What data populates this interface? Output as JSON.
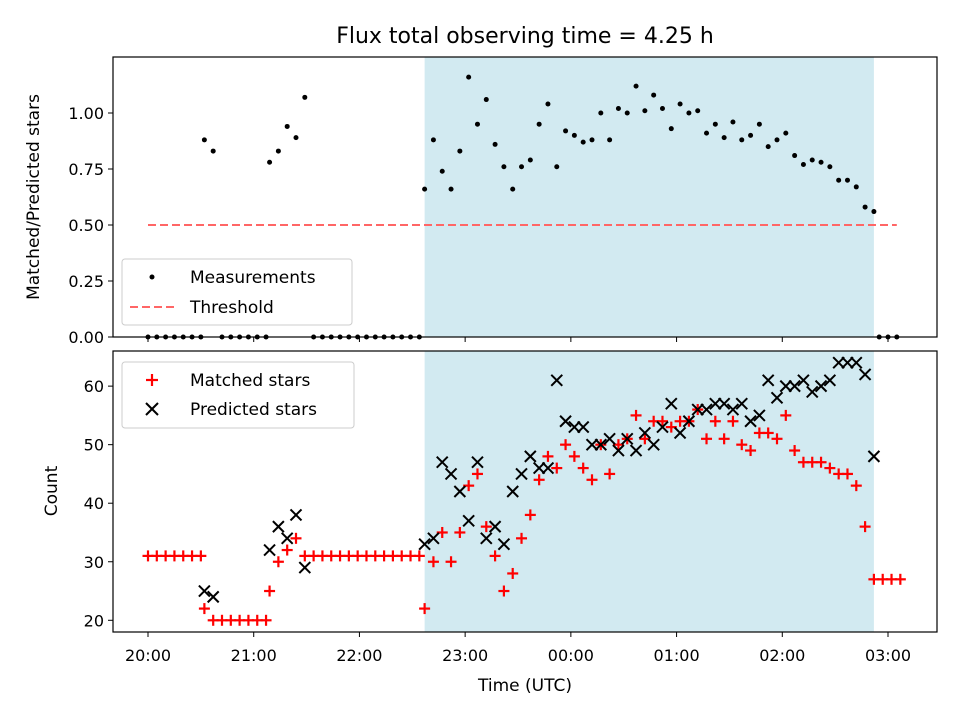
{
  "chart_data": [
    {
      "type": "scatter",
      "title": "Flux total observing time = 4.25 h",
      "xlabel": "",
      "ylabel": "Matched/Predicted stars",
      "ylim": [
        0,
        1.25
      ],
      "yticks": [
        "0.00",
        "0.25",
        "0.50",
        "0.75",
        "1.00"
      ],
      "shaded_region": {
        "from": "22:37",
        "to": "02:52",
        "color": "#add8e6"
      },
      "legend_position": "lower-left",
      "legend": [
        "Measurements",
        "Threshold"
      ],
      "threshold": {
        "name": "Threshold",
        "y": 0.5,
        "x_from": "20:00",
        "x_to": "03:05",
        "color": "#ff6666"
      },
      "series": [
        {
          "name": "Measurements",
          "color": "#000000",
          "points": [
            [
              "20:00",
              0
            ],
            [
              "20:05",
              0
            ],
            [
              "20:10",
              0
            ],
            [
              "20:15",
              0
            ],
            [
              "20:20",
              0
            ],
            [
              "20:25",
              0
            ],
            [
              "20:30",
              0
            ],
            [
              "20:32",
              0.88
            ],
            [
              "20:37",
              0.83
            ],
            [
              "20:42",
              0
            ],
            [
              "20:47",
              0
            ],
            [
              "20:52",
              0
            ],
            [
              "20:57",
              0
            ],
            [
              "21:02",
              0
            ],
            [
              "21:07",
              0
            ],
            [
              "21:09",
              0.78
            ],
            [
              "21:14",
              0.83
            ],
            [
              "21:19",
              0.94
            ],
            [
              "21:24",
              0.89
            ],
            [
              "21:29",
              1.07
            ],
            [
              "21:34",
              0
            ],
            [
              "21:39",
              0
            ],
            [
              "21:44",
              0
            ],
            [
              "21:49",
              0
            ],
            [
              "21:54",
              0
            ],
            [
              "21:59",
              0
            ],
            [
              "22:04",
              0
            ],
            [
              "22:09",
              0
            ],
            [
              "22:14",
              0
            ],
            [
              "22:19",
              0
            ],
            [
              "22:24",
              0
            ],
            [
              "22:29",
              0
            ],
            [
              "22:34",
              0
            ],
            [
              "22:37",
              0.66
            ],
            [
              "22:42",
              0.88
            ],
            [
              "22:47",
              0.74
            ],
            [
              "22:52",
              0.66
            ],
            [
              "22:57",
              0.83
            ],
            [
              "23:02",
              1.16
            ],
            [
              "23:07",
              0.95
            ],
            [
              "23:12",
              1.06
            ],
            [
              "23:17",
              0.86
            ],
            [
              "23:22",
              0.76
            ],
            [
              "23:27",
              0.66
            ],
            [
              "23:32",
              0.76
            ],
            [
              "23:37",
              0.79
            ],
            [
              "23:42",
              0.95
            ],
            [
              "23:47",
              1.04
            ],
            [
              "23:52",
              0.76
            ],
            [
              "23:57",
              0.92
            ],
            [
              "00:02",
              0.9
            ],
            [
              "00:07",
              0.87
            ],
            [
              "00:12",
              0.88
            ],
            [
              "00:17",
              1.0
            ],
            [
              "00:22",
              0.88
            ],
            [
              "00:27",
              1.02
            ],
            [
              "00:32",
              1.0
            ],
            [
              "00:37",
              1.12
            ],
            [
              "00:42",
              1.01
            ],
            [
              "00:47",
              1.08
            ],
            [
              "00:52",
              1.02
            ],
            [
              "00:57",
              0.93
            ],
            [
              "01:02",
              1.04
            ],
            [
              "01:07",
              1.0
            ],
            [
              "01:12",
              1.01
            ],
            [
              "01:17",
              0.91
            ],
            [
              "01:22",
              0.95
            ],
            [
              "01:27",
              0.89
            ],
            [
              "01:32",
              0.96
            ],
            [
              "01:37",
              0.88
            ],
            [
              "01:42",
              0.9
            ],
            [
              "01:47",
              0.95
            ],
            [
              "01:52",
              0.85
            ],
            [
              "01:57",
              0.88
            ],
            [
              "02:02",
              0.91
            ],
            [
              "02:07",
              0.81
            ],
            [
              "02:12",
              0.77
            ],
            [
              "02:17",
              0.79
            ],
            [
              "02:22",
              0.78
            ],
            [
              "02:27",
              0.76
            ],
            [
              "02:32",
              0.7
            ],
            [
              "02:37",
              0.7
            ],
            [
              "02:42",
              0.67
            ],
            [
              "02:47",
              0.58
            ],
            [
              "02:52",
              0.56
            ],
            [
              "02:55",
              0
            ],
            [
              "03:00",
              0
            ],
            [
              "03:05",
              0
            ]
          ]
        }
      ]
    },
    {
      "type": "scatter",
      "title": "",
      "xlabel": "Time (UTC)",
      "ylabel": "Count",
      "ylim": [
        18,
        66
      ],
      "yticks": [
        "20",
        "30",
        "40",
        "50",
        "60"
      ],
      "xticks": [
        "20:00",
        "21:00",
        "22:00",
        "23:00",
        "00:00",
        "01:00",
        "02:00",
        "03:00"
      ],
      "shaded_region": {
        "from": "22:37",
        "to": "02:52",
        "color": "#add8e6"
      },
      "legend_position": "upper-left",
      "legend": [
        "Matched stars",
        "Predicted stars"
      ],
      "series": [
        {
          "name": "Matched stars",
          "marker": "+",
          "color": "#ff0000",
          "points": [
            [
              "20:00",
              31
            ],
            [
              "20:05",
              31
            ],
            [
              "20:10",
              31
            ],
            [
              "20:15",
              31
            ],
            [
              "20:20",
              31
            ],
            [
              "20:25",
              31
            ],
            [
              "20:30",
              31
            ],
            [
              "20:32",
              22
            ],
            [
              "20:37",
              20
            ],
            [
              "20:42",
              20
            ],
            [
              "20:47",
              20
            ],
            [
              "20:52",
              20
            ],
            [
              "20:57",
              20
            ],
            [
              "21:02",
              20
            ],
            [
              "21:07",
              20
            ],
            [
              "21:09",
              25
            ],
            [
              "21:14",
              30
            ],
            [
              "21:19",
              32
            ],
            [
              "21:24",
              34
            ],
            [
              "21:29",
              31
            ],
            [
              "21:34",
              31
            ],
            [
              "21:39",
              31
            ],
            [
              "21:44",
              31
            ],
            [
              "21:49",
              31
            ],
            [
              "21:54",
              31
            ],
            [
              "21:59",
              31
            ],
            [
              "22:04",
              31
            ],
            [
              "22:09",
              31
            ],
            [
              "22:14",
              31
            ],
            [
              "22:19",
              31
            ],
            [
              "22:24",
              31
            ],
            [
              "22:29",
              31
            ],
            [
              "22:34",
              31
            ],
            [
              "22:37",
              22
            ],
            [
              "22:42",
              30
            ],
            [
              "22:47",
              35
            ],
            [
              "22:52",
              30
            ],
            [
              "22:57",
              35
            ],
            [
              "23:02",
              43
            ],
            [
              "23:07",
              45
            ],
            [
              "23:12",
              36
            ],
            [
              "23:17",
              31
            ],
            [
              "23:22",
              25
            ],
            [
              "23:27",
              28
            ],
            [
              "23:32",
              34
            ],
            [
              "23:37",
              38
            ],
            [
              "23:42",
              44
            ],
            [
              "23:47",
              48
            ],
            [
              "23:52",
              46
            ],
            [
              "23:57",
              50
            ],
            [
              "00:02",
              48
            ],
            [
              "00:07",
              46
            ],
            [
              "00:12",
              44
            ],
            [
              "00:17",
              50
            ],
            [
              "00:22",
              45
            ],
            [
              "00:27",
              50
            ],
            [
              "00:32",
              51
            ],
            [
              "00:37",
              55
            ],
            [
              "00:42",
              51
            ],
            [
              "00:47",
              54
            ],
            [
              "00:52",
              54
            ],
            [
              "00:57",
              53
            ],
            [
              "01:02",
              54
            ],
            [
              "01:07",
              54
            ],
            [
              "01:12",
              56
            ],
            [
              "01:17",
              51
            ],
            [
              "01:22",
              54
            ],
            [
              "01:27",
              51
            ],
            [
              "01:32",
              54
            ],
            [
              "01:37",
              50
            ],
            [
              "01:42",
              49
            ],
            [
              "01:47",
              52
            ],
            [
              "01:52",
              52
            ],
            [
              "01:57",
              51
            ],
            [
              "02:02",
              55
            ],
            [
              "02:07",
              49
            ],
            [
              "02:12",
              47
            ],
            [
              "02:17",
              47
            ],
            [
              "02:22",
              47
            ],
            [
              "02:27",
              46
            ],
            [
              "02:32",
              45
            ],
            [
              "02:37",
              45
            ],
            [
              "02:42",
              43
            ],
            [
              "02:47",
              36
            ],
            [
              "02:52",
              27
            ],
            [
              "02:57",
              27
            ],
            [
              "03:02",
              27
            ],
            [
              "03:07",
              27
            ]
          ]
        },
        {
          "name": "Predicted stars",
          "marker": "x",
          "color": "#000000",
          "points": [
            [
              "20:32",
              25
            ],
            [
              "20:37",
              24
            ],
            [
              "21:09",
              32
            ],
            [
              "21:14",
              36
            ],
            [
              "21:19",
              34
            ],
            [
              "21:24",
              38
            ],
            [
              "21:29",
              29
            ],
            [
              "22:37",
              33
            ],
            [
              "22:42",
              34
            ],
            [
              "22:47",
              47
            ],
            [
              "22:52",
              45
            ],
            [
              "22:57",
              42
            ],
            [
              "23:02",
              37
            ],
            [
              "23:07",
              47
            ],
            [
              "23:12",
              34
            ],
            [
              "23:17",
              36
            ],
            [
              "23:22",
              33
            ],
            [
              "23:27",
              42
            ],
            [
              "23:32",
              45
            ],
            [
              "23:37",
              48
            ],
            [
              "23:42",
              46
            ],
            [
              "23:47",
              46
            ],
            [
              "23:52",
              61
            ],
            [
              "23:57",
              54
            ],
            [
              "00:02",
              53
            ],
            [
              "00:07",
              53
            ],
            [
              "00:12",
              50
            ],
            [
              "00:17",
              50
            ],
            [
              "00:22",
              51
            ],
            [
              "00:27",
              49
            ],
            [
              "00:32",
              51
            ],
            [
              "00:37",
              49
            ],
            [
              "00:42",
              52
            ],
            [
              "00:47",
              50
            ],
            [
              "00:52",
              53
            ],
            [
              "00:57",
              57
            ],
            [
              "01:02",
              52
            ],
            [
              "01:07",
              54
            ],
            [
              "01:12",
              56
            ],
            [
              "01:17",
              56
            ],
            [
              "01:22",
              57
            ],
            [
              "01:27",
              57
            ],
            [
              "01:32",
              56
            ],
            [
              "01:37",
              57
            ],
            [
              "01:42",
              54
            ],
            [
              "01:47",
              55
            ],
            [
              "01:52",
              61
            ],
            [
              "01:57",
              58
            ],
            [
              "02:02",
              60
            ],
            [
              "02:07",
              60
            ],
            [
              "02:12",
              61
            ],
            [
              "02:17",
              59
            ],
            [
              "02:22",
              60
            ],
            [
              "02:27",
              61
            ],
            [
              "02:32",
              64
            ],
            [
              "02:37",
              64
            ],
            [
              "02:42",
              64
            ],
            [
              "02:47",
              62
            ],
            [
              "02:52",
              48
            ]
          ]
        }
      ]
    }
  ]
}
